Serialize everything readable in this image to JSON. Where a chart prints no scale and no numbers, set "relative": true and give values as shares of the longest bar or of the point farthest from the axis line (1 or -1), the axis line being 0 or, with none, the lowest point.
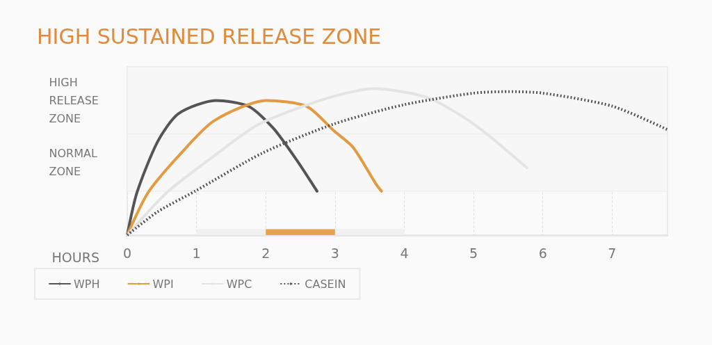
{
  "chart_data": {
    "type": "line",
    "title": "HIGH SUSTAINED RELEASE ZONE",
    "xlabel": "HOURS",
    "relative": true,
    "xlim": [
      0,
      7.8
    ],
    "xticks": [
      0,
      1,
      2,
      3,
      4,
      5,
      6,
      7
    ],
    "grid": "x",
    "legend": "bottom",
    "marker": "none",
    "line_style": "solid",
    "series": [
      {
        "name": "WPH",
        "color": "#555555",
        "x": [
          0,
          0.14,
          0.44,
          0.74,
          1.28,
          1.75,
          2.11,
          2.45,
          2.74
        ],
        "values": [
          0,
          0.29,
          0.64,
          0.83,
          0.92,
          0.88,
          0.73,
          0.51,
          0.3
        ]
      },
      {
        "name": "WPI",
        "color": "#e39a40",
        "x": [
          0,
          0.3,
          0.74,
          1.25,
          2.01,
          2.59,
          2.99,
          3.26,
          3.59,
          3.67
        ],
        "values": [
          0,
          0.29,
          0.54,
          0.78,
          0.92,
          0.88,
          0.71,
          0.6,
          0.35,
          0.3
        ]
      },
      {
        "name": "WPC",
        "color": "#e4e4e4",
        "x": [
          0,
          0.57,
          1.25,
          1.91,
          2.92,
          3.56,
          4.33,
          5.0,
          5.77
        ],
        "values": [
          0,
          0.29,
          0.54,
          0.76,
          0.94,
          1.0,
          0.94,
          0.76,
          0.46
        ]
      },
      {
        "name": "CASEIN",
        "color": "#555555",
        "line_style": "dotted",
        "x": [
          0,
          0.44,
          0.98,
          1.95,
          2.99,
          3.99,
          5.0,
          5.5,
          6.0,
          7.01,
          7.8
        ],
        "values": [
          0,
          0.16,
          0.3,
          0.56,
          0.76,
          0.89,
          0.97,
          0.98,
          0.97,
          0.88,
          0.72
        ]
      }
    ],
    "bands": [
      {
        "axis": "y",
        "from": 0.69,
        "to": 1.15,
        "label": "HIGH RELEASE ZONE"
      },
      {
        "axis": "y",
        "from": 0.3,
        "to": 0.69,
        "label": "NORMAL ZONE"
      },
      {
        "axis": "x",
        "from": 1,
        "to": 4,
        "color": "#eeeeee"
      },
      {
        "axis": "x",
        "from": 2,
        "to": 3,
        "color": "#e39a40"
      }
    ]
  }
}
